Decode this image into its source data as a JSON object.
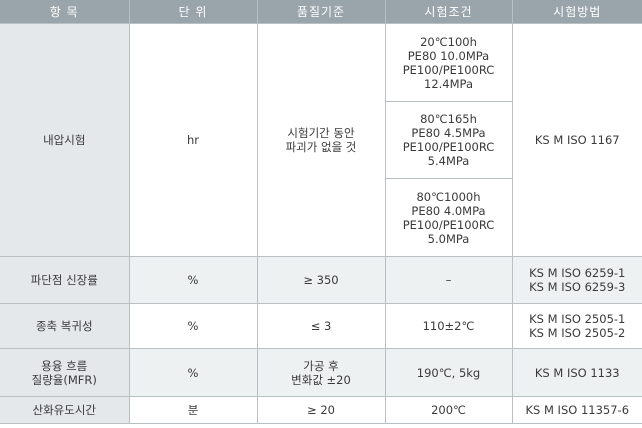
{
  "headers": {
    "item": "항 목",
    "unit": "단 위",
    "standard": "품질기준",
    "condition": "시험조건",
    "method": "시험방법"
  },
  "rows": {
    "pressure": {
      "item": "내압시험",
      "unit": "hr",
      "standard": "시험기간 동안\n파괴가 없을 것",
      "conditions": [
        "20℃100h\nPE80 10.0MPa\nPE100/PE100RC\n12.4MPa",
        "80℃165h\nPE80 4.5MPa\nPE100/PE100RC\n5.4MPa",
        "80℃1000h\nPE80 4.0MPa\nPE100/PE100RC\n5.0MPa"
      ],
      "method": "KS M ISO 1167"
    },
    "elongation": {
      "item": "파단점 신장률",
      "unit": "%",
      "standard": "≥ 350",
      "condition": "–",
      "method": "KS M ISO 6259-1\nKS M ISO 6259-3"
    },
    "reversion": {
      "item": "종축 복귀성",
      "unit": "%",
      "standard": "≤ 3",
      "condition": "110±2℃",
      "method": "KS M ISO 2505-1\nKS M ISO 2505-2"
    },
    "mfr": {
      "item": "용융 흐름\n질량율(MFR)",
      "unit": "%",
      "standard": "가공 후\n변화값 ±20",
      "condition": "190℃, 5kg",
      "method": "KS M ISO 1133"
    },
    "oit": {
      "item": "산화유도시간",
      "unit": "분",
      "standard": "≥ 20",
      "condition": "200℃",
      "method": "KS M ISO 11357-6"
    }
  }
}
